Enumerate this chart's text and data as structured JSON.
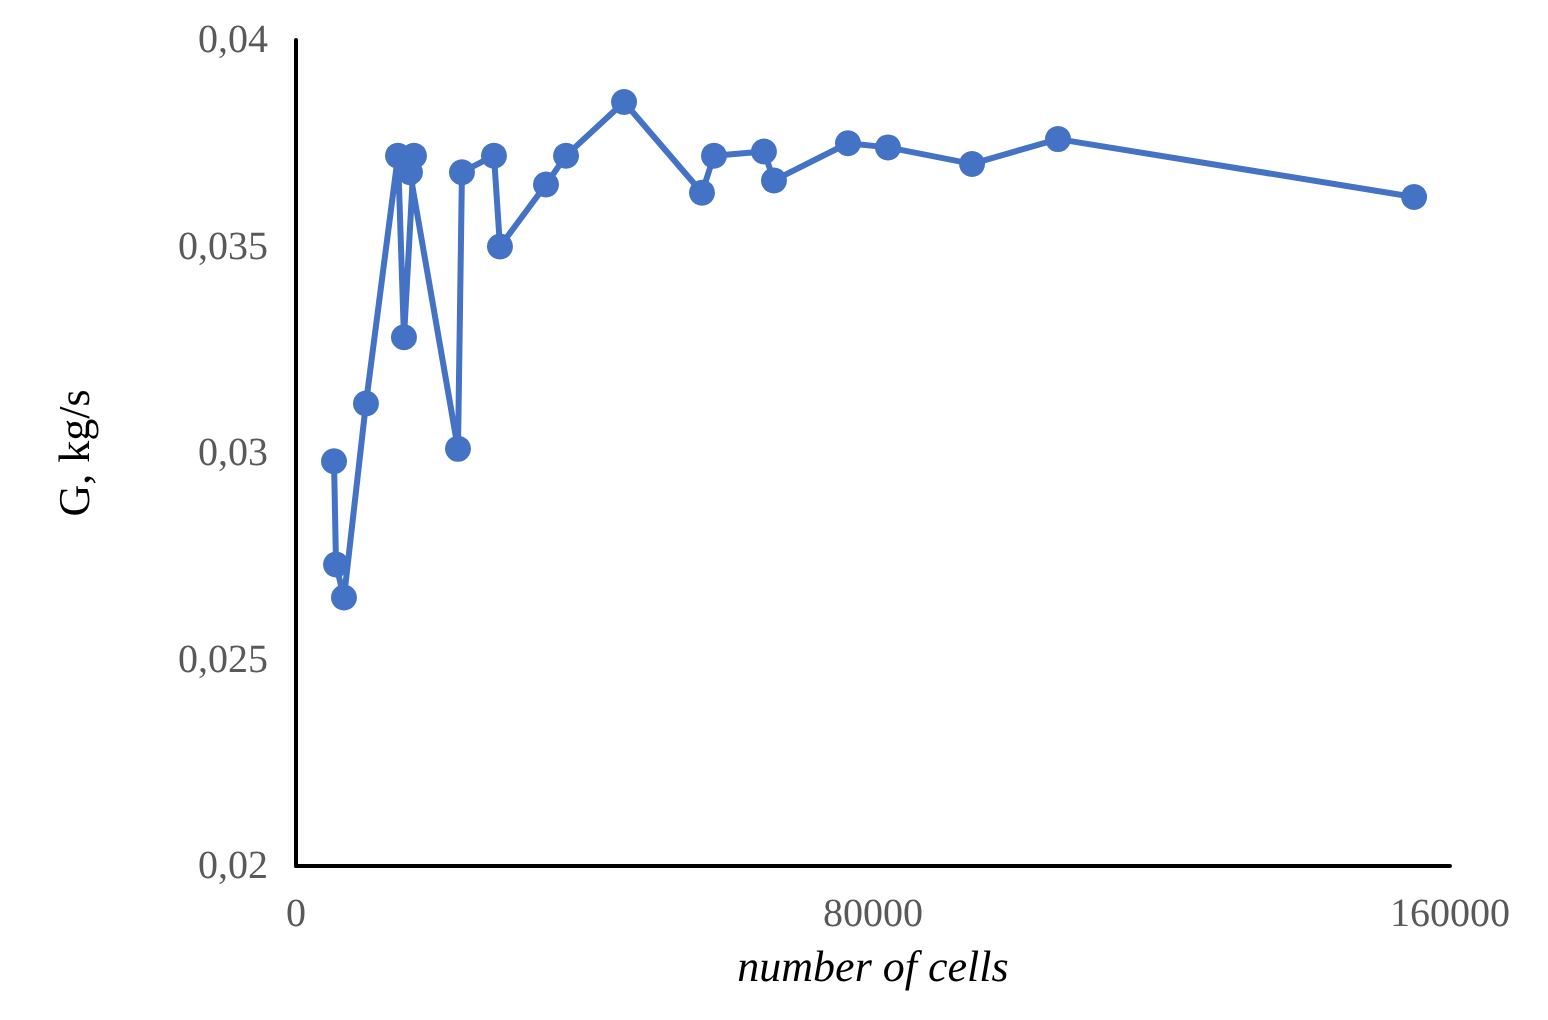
{
  "chart_data": {
    "type": "line",
    "xlabel": "number of cells",
    "ylabel": "G, kg/s",
    "marker": "circle",
    "grid": false,
    "x": [
      5270,
      5550,
      6650,
      9700,
      14140,
      14970,
      16360,
      15800,
      22460,
      23010,
      27450,
      28280,
      34660,
      37440,
      45480,
      56290,
      57950,
      64880,
      66270,
      76530,
      82080,
      93730,
      105650,
      155020
    ],
    "series": [
      {
        "color": "#4472c4",
        "values": [
          0.0298,
          0.0273,
          0.0265,
          0.0312,
          0.0372,
          0.0328,
          0.0372,
          0.0368,
          0.0301,
          0.0368,
          0.0372,
          0.035,
          0.0365,
          0.0372,
          0.0385,
          0.0363,
          0.0372,
          0.0373,
          0.0366,
          0.0375,
          0.0374,
          0.037,
          0.0376,
          0.0362
        ]
      }
    ],
    "xlim": [
      0,
      160000
    ],
    "xticks": [
      0,
      80000,
      160000
    ],
    "ylim": [
      0.02,
      0.04
    ],
    "yticks": [
      {
        "value": 0.02,
        "label": "0,02"
      },
      {
        "value": 0.025,
        "label": "0,025"
      },
      {
        "value": 0.03,
        "label": "0,03"
      },
      {
        "value": 0.035,
        "label": "0,035"
      },
      {
        "value": 0.04,
        "label": "0,04"
      }
    ]
  }
}
